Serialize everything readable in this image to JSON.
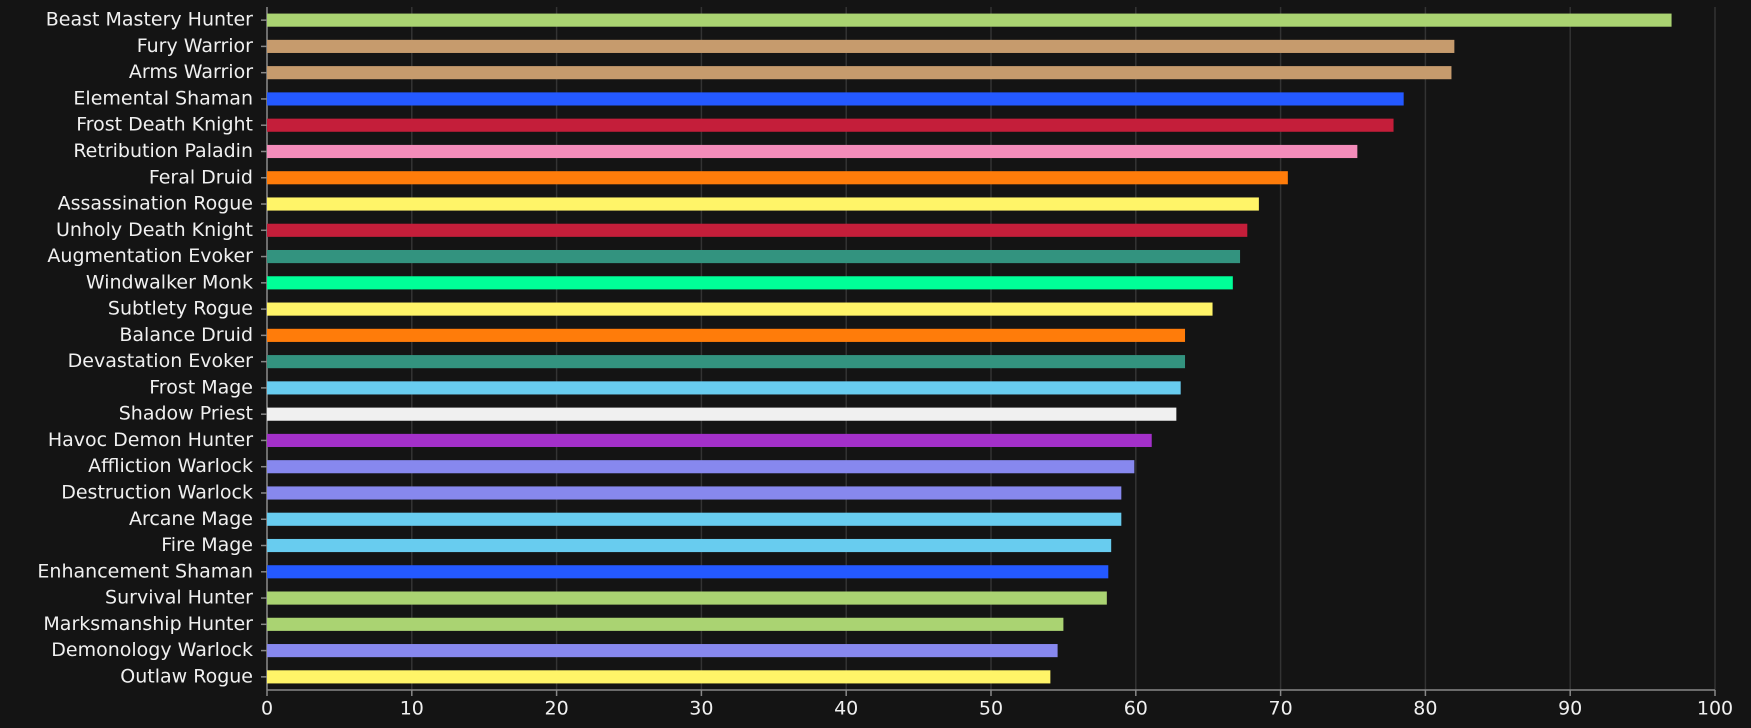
{
  "chart_data": {
    "type": "bar",
    "orientation": "horizontal",
    "categories": [
      "Beast Mastery Hunter",
      "Fury Warrior",
      "Arms Warrior",
      "Elemental Shaman",
      "Frost Death Knight",
      "Retribution Paladin",
      "Feral Druid",
      "Assassination Rogue",
      "Unholy Death Knight",
      "Augmentation Evoker",
      "Windwalker Monk",
      "Subtlety Rogue",
      "Balance Druid",
      "Devastation Evoker",
      "Frost Mage",
      "Shadow Priest",
      "Havoc Demon Hunter",
      "Affliction Warlock",
      "Destruction Warlock",
      "Arcane Mage",
      "Fire Mage",
      "Enhancement Shaman",
      "Survival Hunter",
      "Marksmanship Hunter",
      "Demonology Warlock",
      "Outlaw Rogue"
    ],
    "values": [
      97.0,
      82.0,
      81.8,
      78.5,
      77.8,
      75.3,
      70.5,
      68.5,
      67.7,
      67.2,
      66.7,
      65.3,
      63.4,
      63.4,
      63.1,
      62.8,
      61.1,
      59.9,
      59.0,
      59.0,
      58.3,
      58.1,
      58.0,
      55.0,
      54.6,
      54.1
    ],
    "colors": [
      "#aad372",
      "#c69b6d",
      "#c69b6d",
      "#2459ff",
      "#c41e3a",
      "#f48cba",
      "#ff7c0a",
      "#fff468",
      "#c41e3a",
      "#33937f",
      "#00ff98",
      "#fff468",
      "#ff7c0a",
      "#33937f",
      "#68ccef",
      "#f0f0f0",
      "#a330c9",
      "#8788ee",
      "#8788ee",
      "#68ccef",
      "#68ccef",
      "#2459ff",
      "#aad372",
      "#aad372",
      "#8788ee",
      "#fff468"
    ],
    "xlim": [
      0,
      100
    ],
    "xticks": [
      0,
      10,
      20,
      30,
      40,
      50,
      60,
      70,
      80,
      90,
      100
    ],
    "grid": true
  }
}
